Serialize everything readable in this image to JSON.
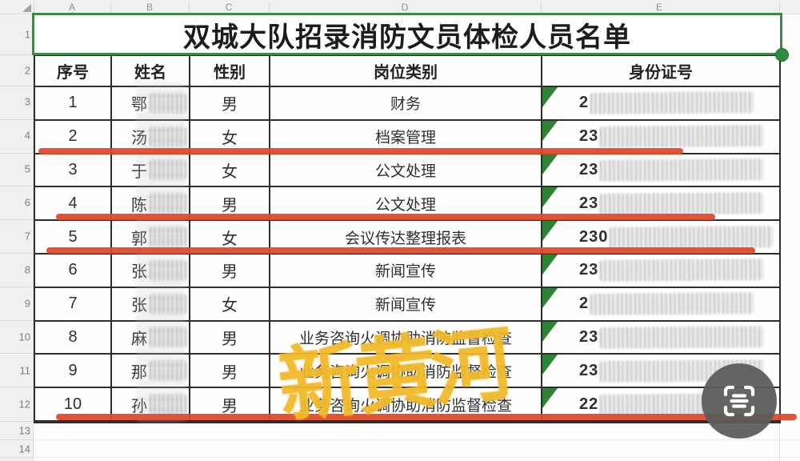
{
  "sheet": {
    "column_letters": [
      "A",
      "B",
      "C",
      "D",
      "E"
    ],
    "row_numbers": [
      "1",
      "2",
      "3",
      "4",
      "5",
      "6",
      "7",
      "8",
      "9",
      "10",
      "11",
      "12",
      "13",
      "14"
    ]
  },
  "table": {
    "title": "双城大队招录消防文员体检人员名单",
    "headers": {
      "serial": "序号",
      "name": "姓名",
      "gender": "性别",
      "position": "岗位类别",
      "id_number": "身份证号"
    },
    "rows": [
      {
        "num": "1",
        "name": "鄂",
        "gender": "男",
        "position": "财务",
        "id_prefix": "2"
      },
      {
        "num": "2",
        "name": "汤",
        "gender": "女",
        "position": "档案管理",
        "id_prefix": "23"
      },
      {
        "num": "3",
        "name": "于",
        "gender": "女",
        "position": "公文处理",
        "id_prefix": "23"
      },
      {
        "num": "4",
        "name": "陈",
        "gender": "男",
        "position": "公文处理",
        "id_prefix": "23"
      },
      {
        "num": "5",
        "name": "郭",
        "gender": "女",
        "position": "会议传达整理报表",
        "id_prefix": "230"
      },
      {
        "num": "6",
        "name": "张",
        "gender": "男",
        "position": "新闻宣传",
        "id_prefix": "23"
      },
      {
        "num": "7",
        "name": "张",
        "gender": "女",
        "position": "新闻宣传",
        "id_prefix": "2"
      },
      {
        "num": "8",
        "name": "麻",
        "gender": "男",
        "position": "业务咨询火调协助消防监督检查",
        "id_prefix": "23"
      },
      {
        "num": "9",
        "name": "那",
        "gender": "男",
        "position": "业务咨询火调协助消防监督检查",
        "id_prefix": "23"
      },
      {
        "num": "10",
        "name": "孙",
        "gender": "男",
        "position": "业务咨询火调协助消防监督检查",
        "id_prefix": "22"
      }
    ]
  },
  "annotations": {
    "watermark_text": "新黄河",
    "red_underline_rows": [
      "2",
      "4",
      "5",
      "10"
    ]
  },
  "colors": {
    "selection_green": "#3f8948",
    "triangle_green": "#2e8334",
    "red_line": "#e0492a",
    "watermark_yellow": "#f0b929",
    "scan_button_gray": "#5b5b5b"
  },
  "overlay": {
    "scan_button": "scan-text-icon"
  }
}
